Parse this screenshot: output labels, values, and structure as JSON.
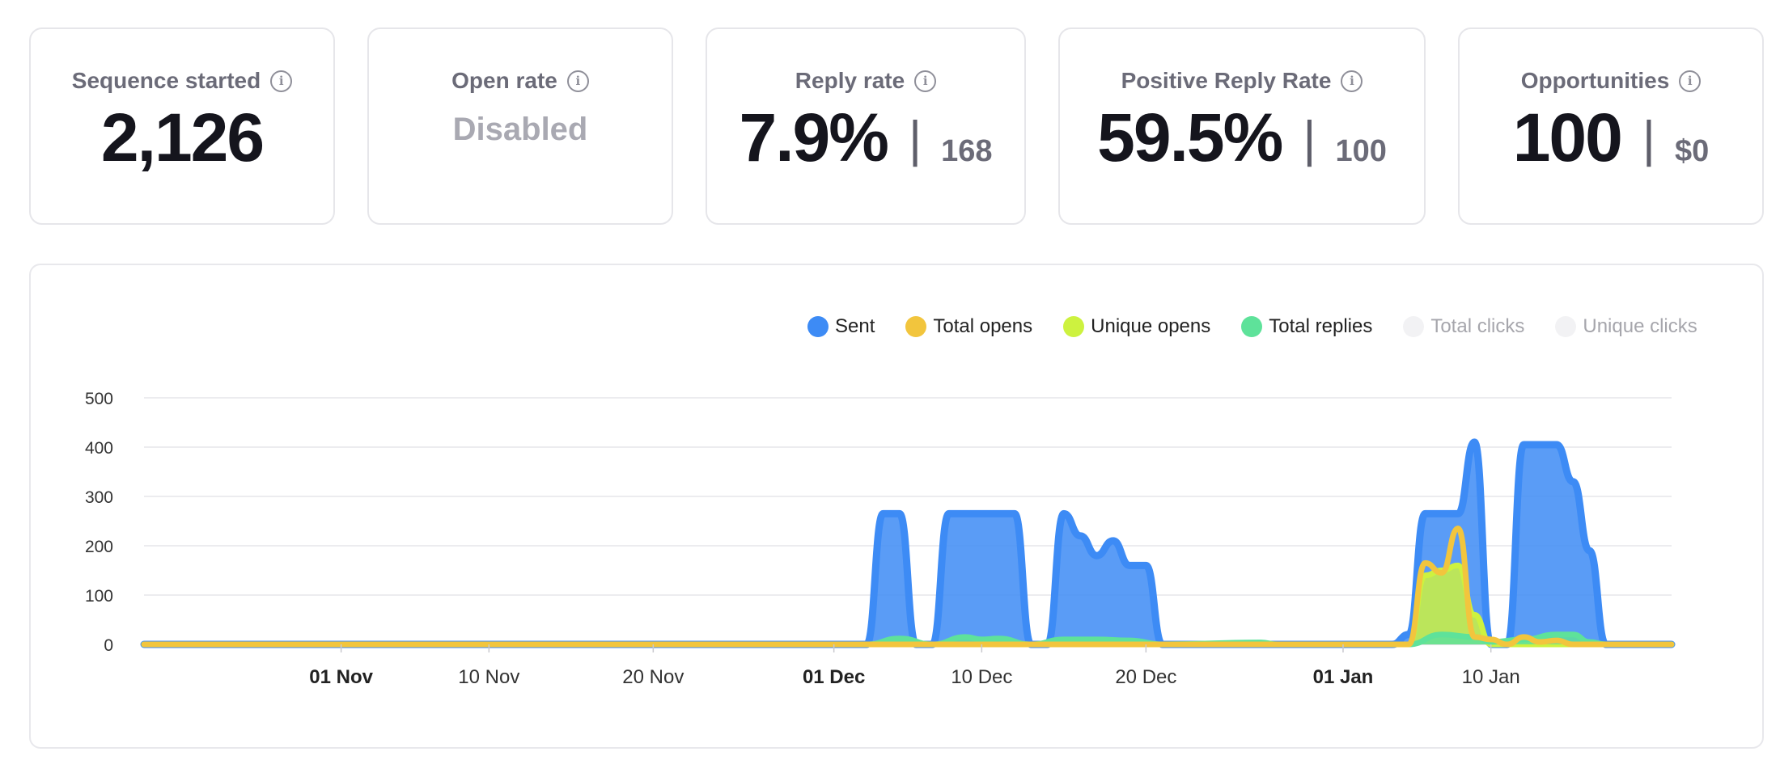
{
  "stats": [
    {
      "title": "Sequence started",
      "value": "2,126",
      "type": "number"
    },
    {
      "title": "Open rate",
      "value": "Disabled",
      "type": "disabled"
    },
    {
      "title": "Reply rate",
      "value": "7.9%",
      "separator": "|",
      "secondary": "168",
      "type": "split"
    },
    {
      "title": "Positive Reply Rate",
      "value": "59.5%",
      "separator": "|",
      "secondary": "100",
      "type": "split"
    },
    {
      "title": "Opportunities",
      "value": "100",
      "separator": "|",
      "secondary": "$0",
      "type": "split"
    }
  ],
  "info_icon": "info-circle-icon",
  "info_glyph": "i",
  "legend": [
    {
      "label": "Sent",
      "color": "#3d8bf5",
      "active": true
    },
    {
      "label": "Total opens",
      "color": "#f2c53d",
      "active": true
    },
    {
      "label": "Unique opens",
      "color": "#cdf23f",
      "active": true
    },
    {
      "label": "Total replies",
      "color": "#5ee29a",
      "active": true
    },
    {
      "label": "Total clicks",
      "color": "#f2f2f4",
      "active": false
    },
    {
      "label": "Unique clicks",
      "color": "#f2f2f4",
      "active": false
    }
  ],
  "chart_data": {
    "type": "area",
    "legend_position": "top-right",
    "grid": true,
    "ylim": [
      0,
      500
    ],
    "yticks": [
      0,
      100,
      200,
      300,
      400,
      500
    ],
    "xlim": [
      "2023-10-20",
      "2024-01-21"
    ],
    "xticks": [
      {
        "date": "2023-11-01",
        "label": "01 Nov",
        "bold": true
      },
      {
        "date": "2023-11-10",
        "label": "10 Nov",
        "bold": false
      },
      {
        "date": "2023-11-20",
        "label": "20 Nov",
        "bold": false
      },
      {
        "date": "2023-12-01",
        "label": "01 Dec",
        "bold": true
      },
      {
        "date": "2023-12-10",
        "label": "10 Dec",
        "bold": false
      },
      {
        "date": "2023-12-20",
        "label": "20 Dec",
        "bold": false
      },
      {
        "date": "2024-01-01",
        "label": "01 Jan",
        "bold": true
      },
      {
        "date": "2024-01-10",
        "label": "10 Jan",
        "bold": false
      }
    ],
    "series": [
      {
        "name": "Sent",
        "color": "#3d8bf5",
        "points": [
          [
            "2023-10-20",
            0
          ],
          [
            "2023-12-03",
            0
          ],
          [
            "2023-12-04",
            265
          ],
          [
            "2023-12-05",
            265
          ],
          [
            "2023-12-06",
            0
          ],
          [
            "2023-12-07",
            0
          ],
          [
            "2023-12-08",
            265
          ],
          [
            "2023-12-09",
            265
          ],
          [
            "2023-12-10",
            265
          ],
          [
            "2023-12-11",
            265
          ],
          [
            "2023-12-12",
            265
          ],
          [
            "2023-12-13",
            0
          ],
          [
            "2023-12-14",
            0
          ],
          [
            "2023-12-15",
            265
          ],
          [
            "2023-12-16",
            220
          ],
          [
            "2023-12-17",
            180
          ],
          [
            "2023-12-18",
            210
          ],
          [
            "2023-12-19",
            160
          ],
          [
            "2023-12-20",
            160
          ],
          [
            "2023-12-21",
            0
          ],
          [
            "2024-01-04",
            0
          ],
          [
            "2024-01-05",
            20
          ],
          [
            "2024-01-06",
            265
          ],
          [
            "2024-01-07",
            265
          ],
          [
            "2024-01-08",
            265
          ],
          [
            "2024-01-09",
            410
          ],
          [
            "2024-01-10",
            0
          ],
          [
            "2024-01-11",
            0
          ],
          [
            "2024-01-12",
            405
          ],
          [
            "2024-01-13",
            405
          ],
          [
            "2024-01-14",
            405
          ],
          [
            "2024-01-15",
            330
          ],
          [
            "2024-01-16",
            190
          ],
          [
            "2024-01-17",
            0
          ],
          [
            "2024-01-21",
            0
          ]
        ]
      },
      {
        "name": "Unique opens",
        "color": "#cdf23f",
        "points": [
          [
            "2023-10-20",
            0
          ],
          [
            "2024-01-05",
            0
          ],
          [
            "2024-01-06",
            140
          ],
          [
            "2024-01-07",
            150
          ],
          [
            "2024-01-08",
            160
          ],
          [
            "2024-01-09",
            60
          ],
          [
            "2024-01-10",
            0
          ],
          [
            "2024-01-21",
            0
          ]
        ]
      },
      {
        "name": "Total replies",
        "color": "#5ee29a",
        "points": [
          [
            "2023-10-20",
            0
          ],
          [
            "2023-12-03",
            0
          ],
          [
            "2023-12-05",
            12
          ],
          [
            "2023-12-07",
            0
          ],
          [
            "2023-12-09",
            15
          ],
          [
            "2023-12-10",
            10
          ],
          [
            "2023-12-11",
            12
          ],
          [
            "2023-12-13",
            0
          ],
          [
            "2023-12-15",
            10
          ],
          [
            "2023-12-17",
            10
          ],
          [
            "2023-12-19",
            8
          ],
          [
            "2023-12-21",
            0
          ],
          [
            "2023-12-27",
            4
          ],
          [
            "2023-12-28",
            0
          ],
          [
            "2024-01-05",
            0
          ],
          [
            "2024-01-07",
            20
          ],
          [
            "2024-01-09",
            15
          ],
          [
            "2024-01-10",
            5
          ],
          [
            "2024-01-12",
            10
          ],
          [
            "2024-01-14",
            20
          ],
          [
            "2024-01-15",
            20
          ],
          [
            "2024-01-16",
            5
          ],
          [
            "2024-01-17",
            0
          ],
          [
            "2024-01-21",
            0
          ]
        ]
      },
      {
        "name": "Total opens",
        "color": "#f2c53d",
        "points": [
          [
            "2023-10-20",
            0
          ],
          [
            "2024-01-05",
            0
          ],
          [
            "2024-01-06",
            165
          ],
          [
            "2024-01-07",
            145
          ],
          [
            "2024-01-08",
            235
          ],
          [
            "2024-01-09",
            15
          ],
          [
            "2024-01-10",
            10
          ],
          [
            "2024-01-11",
            0
          ],
          [
            "2024-01-12",
            15
          ],
          [
            "2024-01-13",
            5
          ],
          [
            "2024-01-14",
            8
          ],
          [
            "2024-01-15",
            0
          ],
          [
            "2024-01-21",
            0
          ]
        ]
      }
    ]
  }
}
